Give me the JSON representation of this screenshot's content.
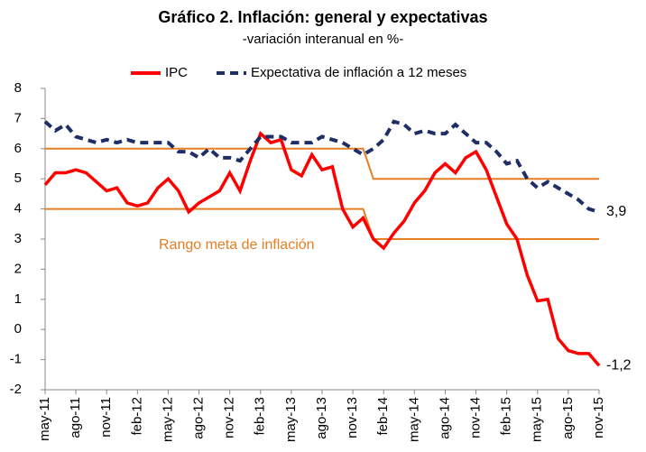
{
  "chart_data": {
    "type": "line",
    "title": "Gráfico 2. Inflación: general y expectativas",
    "subtitle": "-variación interanual en %-",
    "categories": [
      "may-11",
      null,
      null,
      "ago-11",
      null,
      null,
      "nov-11",
      null,
      null,
      "feb-12",
      null,
      null,
      "may-12",
      null,
      null,
      "ago-12",
      null,
      null,
      "nov-12",
      null,
      null,
      "feb-13",
      null,
      null,
      "may-13",
      null,
      null,
      "ago-13",
      null,
      null,
      "nov-13",
      null,
      null,
      "feb-14",
      null,
      null,
      "may-14",
      null,
      null,
      "ago-14",
      null,
      null,
      "nov-14",
      null,
      null,
      "feb-15",
      null,
      null,
      "may-15",
      null,
      null,
      "ago-15",
      null,
      null,
      "nov-15"
    ],
    "series": [
      {
        "name": "IPC",
        "color": "#ff0000",
        "dashed": false,
        "values": [
          4.8,
          5.2,
          5.2,
          5.3,
          5.2,
          4.9,
          4.6,
          4.7,
          4.2,
          4.1,
          4.2,
          4.7,
          5.0,
          4.6,
          3.9,
          4.2,
          4.4,
          4.6,
          5.2,
          4.6,
          5.6,
          6.5,
          6.2,
          6.3,
          5.3,
          5.1,
          5.8,
          5.3,
          5.4,
          4.0,
          3.4,
          3.7,
          3.0,
          2.7,
          3.2,
          3.6,
          4.2,
          4.6,
          5.2,
          5.5,
          5.2,
          5.7,
          5.9,
          5.3,
          4.4,
          3.5,
          3.0,
          1.8,
          0.95,
          1.0,
          -0.3,
          -0.7,
          -0.8,
          -0.8,
          -1.2
        ],
        "value_labels": [
          null,
          null,
          null,
          null,
          null,
          null,
          null,
          null,
          null,
          null,
          null,
          null,
          null,
          null,
          null,
          null,
          null,
          null,
          null,
          null,
          null,
          null,
          null,
          null,
          null,
          null,
          null,
          null,
          null,
          null,
          null,
          null,
          null,
          null,
          null,
          null,
          null,
          null,
          null,
          null,
          null,
          null,
          null,
          null,
          null,
          null,
          null,
          null,
          null,
          null,
          null,
          null,
          null,
          null,
          "-1,2"
        ]
      },
      {
        "name": "Expectativa de inflación a 12 meses",
        "color": "#1f2f66",
        "dashed": true,
        "values": [
          6.9,
          6.6,
          6.8,
          6.4,
          6.3,
          6.2,
          6.3,
          6.2,
          6.3,
          6.2,
          6.2,
          6.2,
          6.2,
          5.9,
          5.9,
          5.7,
          6.0,
          5.7,
          5.7,
          5.6,
          6.0,
          6.4,
          6.4,
          6.4,
          6.2,
          6.2,
          6.2,
          6.4,
          6.3,
          6.2,
          6.0,
          5.8,
          6.0,
          6.3,
          6.9,
          6.8,
          6.5,
          6.6,
          6.5,
          6.5,
          6.8,
          6.5,
          6.2,
          6.2,
          5.9,
          5.5,
          5.6,
          5.0,
          4.7,
          4.9,
          4.7,
          4.5,
          4.3,
          4.0,
          3.9
        ],
        "value_labels": [
          null,
          null,
          null,
          null,
          null,
          null,
          null,
          null,
          null,
          null,
          null,
          null,
          null,
          null,
          null,
          null,
          null,
          null,
          null,
          null,
          null,
          null,
          null,
          null,
          null,
          null,
          null,
          null,
          null,
          null,
          null,
          null,
          null,
          null,
          null,
          null,
          null,
          null,
          null,
          null,
          null,
          null,
          null,
          null,
          null,
          null,
          null,
          null,
          null,
          null,
          null,
          null,
          null,
          null,
          "3,9"
        ]
      }
    ],
    "target_range": {
      "label": "Rango meta de inflación",
      "color": "#e67e22",
      "upper": [
        6,
        6,
        6,
        6,
        6,
        6,
        6,
        6,
        6,
        6,
        6,
        6,
        6,
        6,
        6,
        6,
        6,
        6,
        6,
        6,
        6,
        6,
        6,
        6,
        6,
        6,
        6,
        6,
        6,
        6,
        6,
        6,
        5,
        5,
        5,
        5,
        5,
        5,
        5,
        5,
        5,
        5,
        5,
        5,
        5,
        5,
        5,
        5,
        5,
        5,
        5,
        5,
        5,
        5,
        5
      ],
      "lower": [
        4,
        4,
        4,
        4,
        4,
        4,
        4,
        4,
        4,
        4,
        4,
        4,
        4,
        4,
        4,
        4,
        4,
        4,
        4,
        4,
        4,
        4,
        4,
        4,
        4,
        4,
        4,
        4,
        4,
        4,
        4,
        4,
        3,
        3,
        3,
        3,
        3,
        3,
        3,
        3,
        3,
        3,
        3,
        3,
        3,
        3,
        3,
        3,
        3,
        3,
        3,
        3,
        3,
        3,
        3
      ]
    },
    "ylim": [
      -2,
      8
    ],
    "yticks": [
      -2,
      -1,
      0,
      1,
      2,
      3,
      4,
      5,
      6,
      7,
      8
    ],
    "grid": false,
    "legend": "top"
  }
}
